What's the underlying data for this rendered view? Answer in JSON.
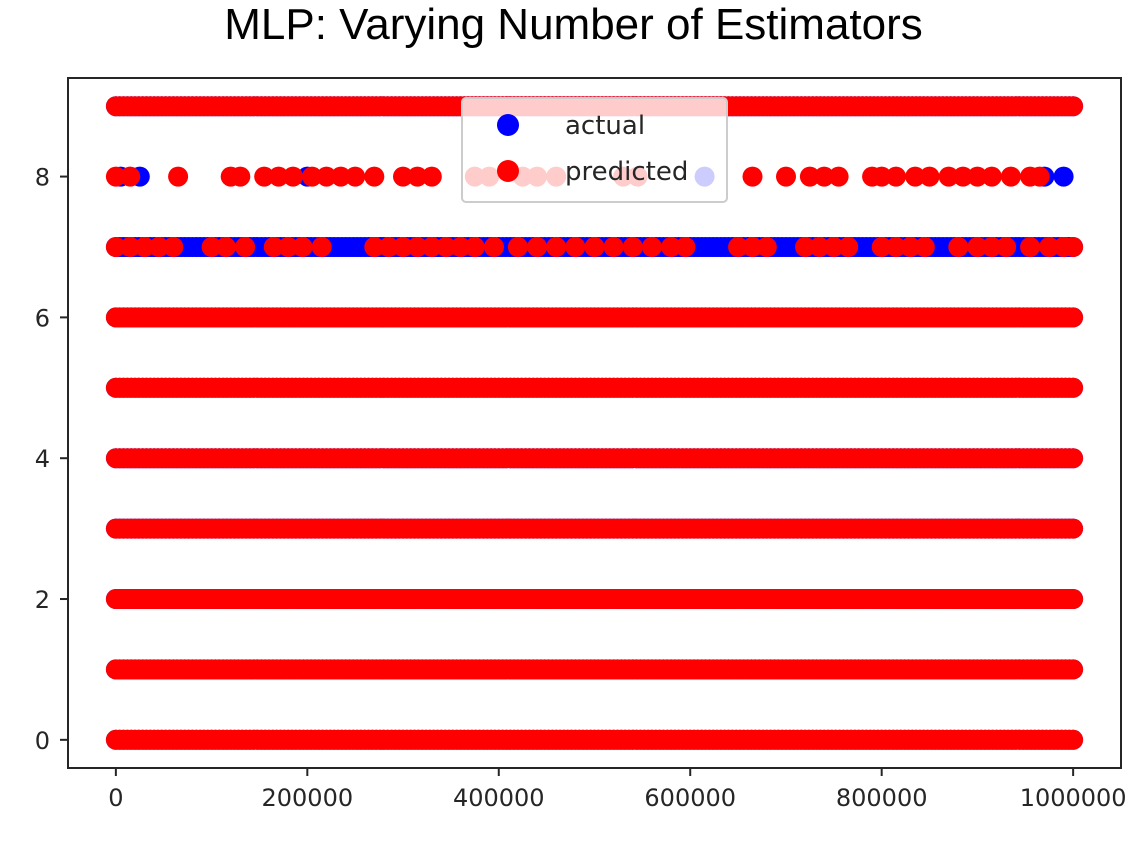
{
  "chart_data": {
    "type": "scatter",
    "title": "MLP: Varying Number of Estimators",
    "xlabel": "",
    "ylabel": "",
    "xlim": [
      -50000,
      1050000
    ],
    "ylim": [
      -0.4,
      9.4
    ],
    "xticks": [
      0,
      200000,
      400000,
      600000,
      800000,
      1000000
    ],
    "yticks": [
      0,
      2,
      4,
      6,
      8
    ],
    "grid": false,
    "legend": {
      "position": "top-center",
      "entries": [
        "actual",
        "predicted"
      ]
    },
    "series": [
      {
        "name": "actual",
        "color": "#0000ff",
        "points": [
          {
            "y": 0,
            "x_start": 0,
            "x_end": 1000000
          },
          {
            "y": 1,
            "x_start": 0,
            "x_end": 1000000
          },
          {
            "y": 2,
            "x_start": 0,
            "x_end": 1000000
          },
          {
            "y": 3,
            "x_start": 0,
            "x_end": 1000000
          },
          {
            "y": 4,
            "x_start": 0,
            "x_end": 1000000
          },
          {
            "y": 5,
            "x_start": 0,
            "x_end": 1000000
          },
          {
            "y": 6,
            "x_start": 0,
            "x_end": 1000000
          },
          {
            "y": 7,
            "x_start": 0,
            "x_end": 1000000
          },
          {
            "y": 8,
            "x": [
              5000,
              25000,
              200000,
              615000,
              970000,
              990000
            ]
          },
          {
            "y": 9,
            "x_start": 0,
            "x_end": 1000000
          }
        ]
      },
      {
        "name": "predicted",
        "color": "#ff0000",
        "points": [
          {
            "y": 0,
            "x_start": 0,
            "x_end": 1000000
          },
          {
            "y": 1,
            "x_start": 0,
            "x_end": 1000000
          },
          {
            "y": 2,
            "x_start": 0,
            "x_end": 1000000
          },
          {
            "y": 3,
            "x_start": 0,
            "x_end": 1000000
          },
          {
            "y": 4,
            "x_start": 0,
            "x_end": 1000000
          },
          {
            "y": 5,
            "x_start": 0,
            "x_end": 1000000
          },
          {
            "y": 6,
            "x_start": 0,
            "x_end": 1000000
          },
          {
            "y": 7,
            "x": [
              0,
              15000,
              30000,
              45000,
              60000,
              100000,
              115000,
              135000,
              165000,
              180000,
              195000,
              215000,
              270000,
              285000,
              300000,
              315000,
              330000,
              345000,
              360000,
              375000,
              395000,
              420000,
              440000,
              460000,
              480000,
              500000,
              520000,
              540000,
              560000,
              580000,
              595000,
              650000,
              665000,
              680000,
              720000,
              735000,
              750000,
              765000,
              800000,
              815000,
              830000,
              845000,
              880000,
              900000,
              915000,
              930000,
              955000,
              975000,
              990000,
              1000000
            ]
          },
          {
            "y": 8,
            "x": [
              0,
              15000,
              65000,
              120000,
              130000,
              155000,
              170000,
              185000,
              205000,
              220000,
              235000,
              250000,
              270000,
              300000,
              315000,
              330000,
              375000,
              390000,
              425000,
              440000,
              460000,
              530000,
              545000,
              665000,
              700000,
              725000,
              740000,
              755000,
              790000,
              800000,
              815000,
              835000,
              850000,
              870000,
              885000,
              900000,
              915000,
              935000,
              955000,
              965000
            ]
          },
          {
            "y": 9,
            "x_start": 0,
            "x_end": 1000000
          }
        ]
      }
    ]
  }
}
